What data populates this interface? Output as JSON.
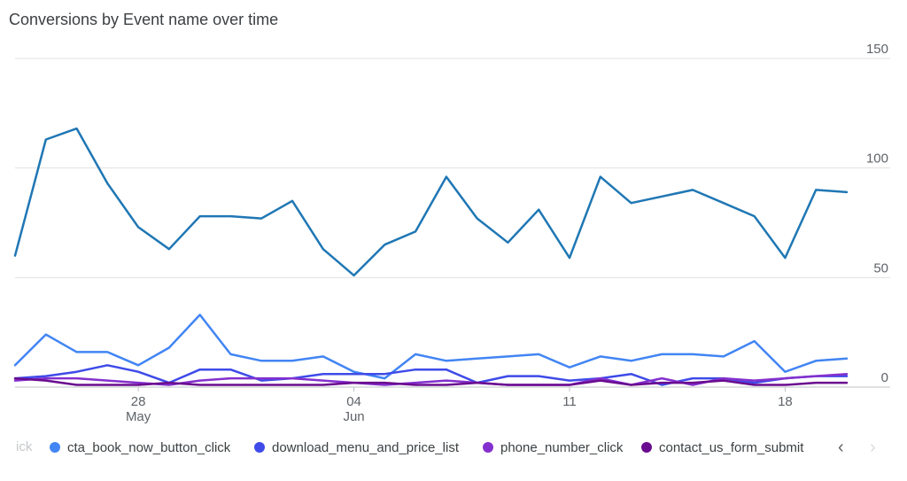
{
  "chart_title": "Conversions by Event name over time",
  "legend": {
    "faded_prefix": "ick",
    "prev_icon": "chevron-left",
    "next_icon": "chevron-right",
    "prev_glyph": "‹",
    "next_glyph": "›"
  },
  "chart_data": {
    "type": "line",
    "title": "Conversions by Event name over time",
    "y_axis": {
      "min": 0,
      "max": 150,
      "ticks": [
        0,
        50,
        100,
        150
      ],
      "position": "right"
    },
    "grid": true,
    "legend_position": "bottom",
    "x_tick_labels": [
      {
        "day": "28",
        "month": "May",
        "index": 4
      },
      {
        "day": "04",
        "month": "Jun",
        "index": 11
      },
      {
        "day": "11",
        "month": "",
        "index": 18
      },
      {
        "day": "18",
        "month": "",
        "index": 25
      }
    ],
    "series": [
      {
        "name": "",
        "color": "#1f77b4",
        "values": [
          60,
          113,
          118,
          93,
          73,
          63,
          78,
          78,
          77,
          85,
          63,
          51,
          65,
          71,
          96,
          77,
          66,
          81,
          59,
          96,
          84,
          87,
          90,
          84,
          78,
          59,
          90,
          89
        ]
      },
      {
        "name": "cta_book_now_button_click",
        "color": "#4285f4",
        "values": [
          10,
          24,
          16,
          16,
          10,
          18,
          33,
          15,
          12,
          12,
          14,
          7,
          4,
          15,
          12,
          13,
          14,
          15,
          9,
          14,
          12,
          15,
          15,
          14,
          21,
          7,
          12,
          13
        ]
      },
      {
        "name": "download_menu_and_price_list",
        "color": "#3e4be8",
        "values": [
          4,
          5,
          7,
          10,
          7,
          2,
          8,
          8,
          3,
          4,
          6,
          6,
          6,
          8,
          8,
          2,
          5,
          5,
          3,
          4,
          6,
          1,
          4,
          4,
          2,
          4,
          5,
          5
        ]
      },
      {
        "name": "phone_number_click",
        "color": "#8430ce",
        "values": [
          3,
          4,
          4,
          3,
          2,
          1,
          3,
          4,
          4,
          4,
          3,
          2,
          1,
          2,
          3,
          2,
          1,
          1,
          1,
          4,
          1,
          4,
          1,
          4,
          3,
          4,
          5,
          6
        ]
      },
      {
        "name": "contact_us_form_submit",
        "color": "#6a0c8f",
        "values": [
          4,
          3,
          1,
          1,
          1,
          2,
          1,
          1,
          1,
          1,
          1,
          2,
          2,
          1,
          1,
          2,
          1,
          1,
          1,
          3,
          1,
          2,
          2,
          3,
          1,
          1,
          2,
          2
        ]
      }
    ]
  }
}
